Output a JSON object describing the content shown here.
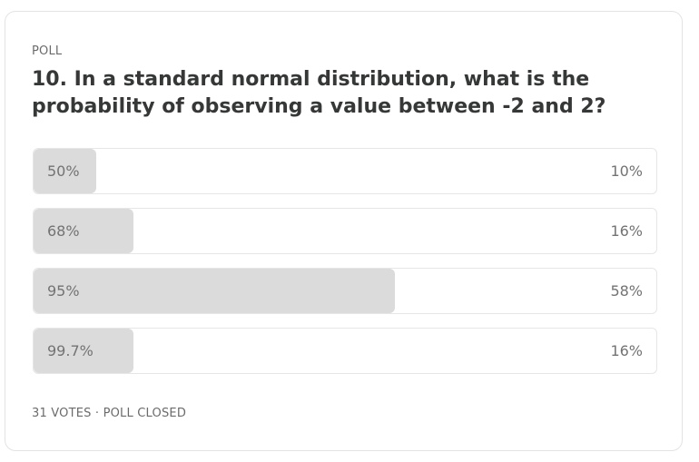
{
  "poll": {
    "label": "POLL",
    "question": "10. In a standard normal distribution, what is the probability of observing a value between -2 and 2?",
    "options": [
      {
        "label": "50%",
        "percent_text": "10%",
        "fraction": 0.1
      },
      {
        "label": "68%",
        "percent_text": "16%",
        "fraction": 0.16
      },
      {
        "label": "95%",
        "percent_text": "58%",
        "fraction": 0.58
      },
      {
        "label": "99.7%",
        "percent_text": "16%",
        "fraction": 0.16
      }
    ],
    "footer": "31 VOTES · POLL CLOSED"
  },
  "colors": {
    "bar_fill": "#dbdbdb",
    "border": "#e6e6e6",
    "question_text": "#363737",
    "muted_text": "#737373"
  }
}
